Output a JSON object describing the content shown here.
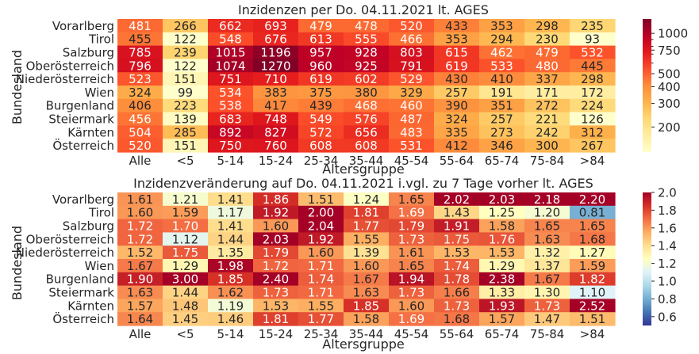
{
  "chart_data": [
    {
      "type": "heatmap",
      "title": "Inzidenzen per Do. 04.11.2021 lt. AGES",
      "xlabel": "Altersgruppe",
      "ylabel": "Bundesland",
      "x": [
        "Alle",
        "<5",
        "5-14",
        "15-24",
        "25-34",
        "35-44",
        "45-54",
        "55-64",
        "65-74",
        "75-84",
        ">84"
      ],
      "y": [
        "Vorarlberg",
        "Tirol",
        "Salzburg",
        "Oberösterreich",
        "Niederösterreich",
        "Wien",
        "Burgenland",
        "Steiermark",
        "Kärnten",
        "Österreich"
      ],
      "values": [
        [
          481,
          266,
          662,
          693,
          479,
          478,
          520,
          433,
          353,
          298,
          235
        ],
        [
          455,
          122,
          548,
          676,
          613,
          555,
          466,
          353,
          294,
          230,
          93
        ],
        [
          785,
          239,
          1015,
          1196,
          957,
          928,
          803,
          615,
          462,
          479,
          532
        ],
        [
          796,
          122,
          1074,
          1270,
          960,
          925,
          791,
          619,
          533,
          480,
          445
        ],
        [
          523,
          151,
          751,
          710,
          619,
          602,
          529,
          430,
          410,
          337,
          298
        ],
        [
          324,
          99,
          534,
          383,
          375,
          380,
          329,
          257,
          191,
          171,
          172
        ],
        [
          406,
          223,
          538,
          417,
          439,
          468,
          460,
          390,
          351,
          272,
          224
        ],
        [
          456,
          139,
          683,
          748,
          549,
          576,
          487,
          324,
          257,
          221,
          126
        ],
        [
          504,
          285,
          892,
          827,
          572,
          656,
          483,
          335,
          273,
          242,
          312
        ],
        [
          520,
          151,
          750,
          760,
          608,
          608,
          531,
          412,
          346,
          300,
          267
        ]
      ],
      "colormap": "YlOrRd",
      "colorscale": "log",
      "colorbar_range": [
        130,
        1280
      ],
      "colorbar_ticks": [
        "1000",
        "750",
        "500",
        "400",
        "300",
        "200"
      ],
      "colorbar_tick_values": [
        1000,
        750,
        500,
        400,
        300,
        200
      ],
      "colorbar_minor_ticks": [
        900,
        800,
        700,
        600
      ]
    },
    {
      "type": "heatmap",
      "title": "Inzidenzveränderung auf Do. 04.11.2021 i.vgl. zu 7 Tage vorher lt. AGES",
      "xlabel": "Altersgruppe",
      "ylabel": "Bundesland",
      "x": [
        "Alle",
        "<5",
        "5-14",
        "15-24",
        "25-34",
        "35-44",
        "45-54",
        "55-64",
        "65-74",
        "75-84",
        ">84"
      ],
      "y": [
        "Vorarlberg",
        "Tirol",
        "Salzburg",
        "Oberösterreich",
        "Niederösterreich",
        "Wien",
        "Burgenland",
        "Steiermark",
        "Kärnten",
        "Österreich"
      ],
      "values": [
        [
          "1.61",
          "1.21",
          "1.41",
          "1.86",
          "1.51",
          "1.24",
          "1.65",
          "2.02",
          "2.03",
          "2.18",
          "2.20"
        ],
        [
          "1.60",
          "1.59",
          "1.17",
          "1.92",
          "2.00",
          "1.81",
          "1.69",
          "1.43",
          "1.25",
          "1.20",
          "0.81"
        ],
        [
          "1.72",
          "1.70",
          "1.41",
          "1.60",
          "2.04",
          "1.77",
          "1.79",
          "1.91",
          "1.58",
          "1.65",
          "1.65"
        ],
        [
          "1.72",
          "1.12",
          "1.44",
          "2.03",
          "1.92",
          "1.55",
          "1.73",
          "1.75",
          "1.76",
          "1.63",
          "1.68"
        ],
        [
          "1.52",
          "1.75",
          "1.35",
          "1.79",
          "1.60",
          "1.39",
          "1.61",
          "1.53",
          "1.53",
          "1.32",
          "1.27"
        ],
        [
          "1.67",
          "1.29",
          "1.98",
          "1.72",
          "1.71",
          "1.60",
          "1.65",
          "1.74",
          "1.29",
          "1.37",
          "1.59"
        ],
        [
          "1.90",
          "3.00",
          "1.85",
          "2.40",
          "1.74",
          "1.67",
          "1.94",
          "1.78",
          "2.38",
          "1.67",
          "1.82"
        ],
        [
          "1.63",
          "1.44",
          "1.62",
          "1.73",
          "1.71",
          "1.63",
          "1.73",
          "1.66",
          "1.33",
          "1.30",
          "1.10"
        ],
        [
          "1.57",
          "1.48",
          "1.19",
          "1.53",
          "1.55",
          "1.85",
          "1.60",
          "1.73",
          "1.93",
          "1.73",
          "2.52"
        ],
        [
          "1.64",
          "1.45",
          "1.46",
          "1.81",
          "1.77",
          "1.58",
          "1.69",
          "1.68",
          "1.57",
          "1.47",
          "1.51"
        ]
      ],
      "colormap": "RdYlBu_r",
      "colorscale": "linear",
      "colorbar_range": [
        0.5,
        2.0
      ],
      "colorbar_ticks": [
        "2.0",
        "1.8",
        "1.6",
        "1.4",
        "1.2",
        "1.0",
        "0.8",
        "0.6"
      ],
      "colorbar_tick_values": [
        2.0,
        1.8,
        1.6,
        1.4,
        1.2,
        1.0,
        0.8,
        0.6
      ]
    }
  ]
}
